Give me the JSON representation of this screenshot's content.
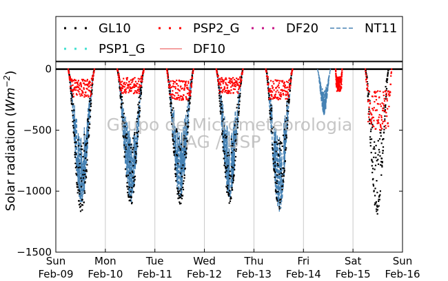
{
  "chart_data": {
    "type": "line",
    "ylabel": "Solar radiation",
    "ylabel_unit_base": "Wm",
    "ylabel_unit_exp": "−2",
    "ylim": [
      -1500,
      60
    ],
    "yticks": [
      0,
      -500,
      -1000,
      -1500
    ],
    "ytick_labels": [
      "0",
      "−500",
      "−1000",
      "−1500"
    ],
    "xlim": [
      0,
      7
    ],
    "x_unit": "days since Sun Feb-09 00:00",
    "xticks": [
      {
        "x": 0,
        "day": "Sun",
        "date": "Feb-09"
      },
      {
        "x": 1,
        "day": "Mon",
        "date": "Feb-10"
      },
      {
        "x": 2,
        "day": "Tue",
        "date": "Feb-11"
      },
      {
        "x": 3,
        "day": "Wed",
        "date": "Feb-12"
      },
      {
        "x": 4,
        "day": "Thu",
        "date": "Feb-13"
      },
      {
        "x": 5,
        "day": "Fri",
        "date": "Feb-14"
      },
      {
        "x": 6,
        "day": "Sat",
        "date": "Feb-15"
      },
      {
        "x": 7,
        "day": "Sun",
        "date": "Feb-16"
      }
    ],
    "grid": "vertical",
    "legend_position": "top",
    "watermark": [
      "Grupo de Micrometeorologia",
      "IAG / USP"
    ],
    "series": [
      {
        "name": "GL10",
        "style": "dots",
        "color": "#000000",
        "days": [
          {
            "start": 0.25,
            "end": 0.78,
            "peak": -1180
          },
          {
            "start": 1.24,
            "end": 1.78,
            "peak": -1120
          },
          {
            "start": 2.24,
            "end": 2.78,
            "peak": -1110
          },
          {
            "start": 3.24,
            "end": 3.78,
            "peak": -1100
          },
          {
            "start": 4.24,
            "end": 4.78,
            "peak": -1150
          },
          {
            "start": 6.25,
            "end": 6.72,
            "peak": -1190
          }
        ]
      },
      {
        "name": "PSP1_G",
        "style": "dots",
        "color": "#40e0d0",
        "days": []
      },
      {
        "name": "PSP2_G",
        "style": "dots",
        "color": "#ff0000",
        "days": [
          {
            "start": 0.25,
            "end": 0.78,
            "peak": -230
          },
          {
            "start": 1.24,
            "end": 1.78,
            "peak": -200
          },
          {
            "start": 2.24,
            "end": 2.78,
            "peak": -260
          },
          {
            "start": 3.24,
            "end": 3.78,
            "peak": -200
          },
          {
            "start": 4.24,
            "end": 4.78,
            "peak": -250
          },
          {
            "start": 5.65,
            "end": 5.78,
            "peak": -180
          },
          {
            "start": 6.25,
            "end": 6.78,
            "peak": -500
          }
        ]
      },
      {
        "name": "DF10",
        "style": "line",
        "color": "#f08080",
        "days": []
      },
      {
        "name": "DF20",
        "style": "dots",
        "color": "#c71585",
        "days": []
      },
      {
        "name": "NT11",
        "style": "dashed",
        "color": "#4682b4",
        "days": [
          {
            "start": 0.25,
            "end": 0.78,
            "peak": -1120
          },
          {
            "start": 1.24,
            "end": 1.78,
            "peak": -1100
          },
          {
            "start": 2.24,
            "end": 2.78,
            "peak": -1090
          },
          {
            "start": 3.24,
            "end": 3.78,
            "peak": -1070
          },
          {
            "start": 4.24,
            "end": 4.78,
            "peak": -1180
          },
          {
            "start": 5.28,
            "end": 5.55,
            "peak": -380
          }
        ]
      }
    ]
  }
}
